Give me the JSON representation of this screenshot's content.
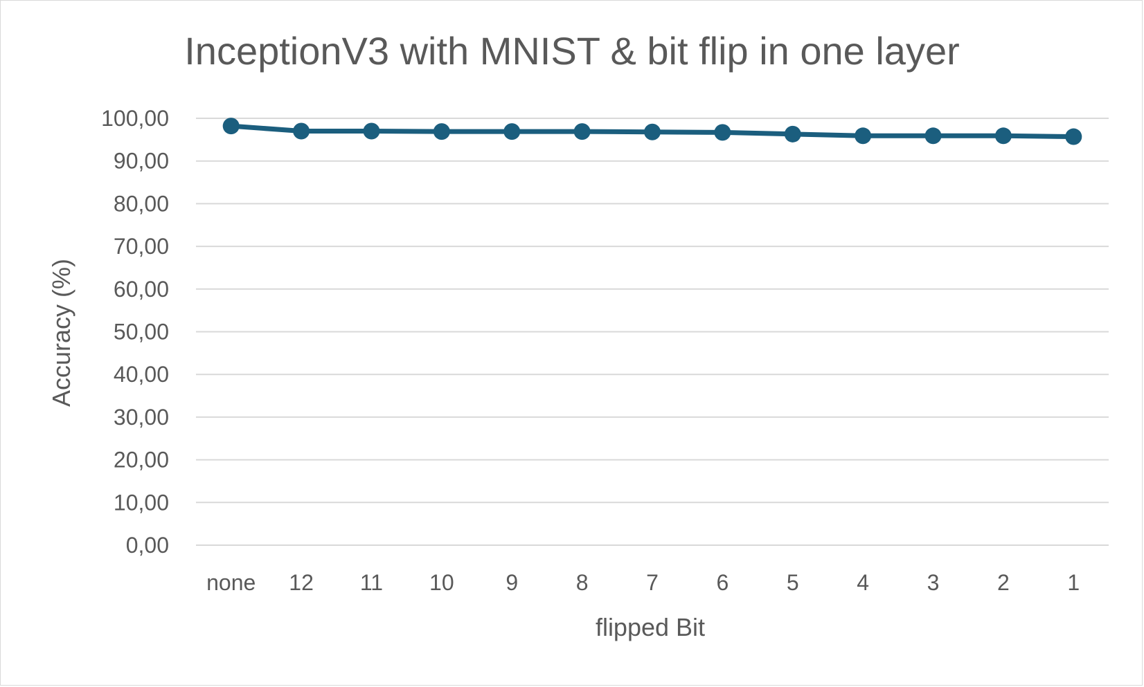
{
  "chart_data": {
    "type": "line",
    "title": "InceptionV3 with MNIST & bit flip in one layer",
    "xlabel": "flipped Bit",
    "ylabel": "Accuracy (%)",
    "categories": [
      "none",
      "12",
      "11",
      "10",
      "9",
      "8",
      "7",
      "6",
      "5",
      "4",
      "3",
      "2",
      "1"
    ],
    "series": [
      {
        "values": [
          98.2,
          97.0,
          97.0,
          96.9,
          96.9,
          96.9,
          96.8,
          96.7,
          96.3,
          95.9,
          95.9,
          95.9,
          95.7
        ]
      }
    ],
    "ylim": [
      0,
      100
    ],
    "yticks": [
      0,
      10,
      20,
      30,
      40,
      50,
      60,
      70,
      80,
      90,
      100
    ],
    "ytick_labels": [
      "0,00",
      "10,00",
      "20,00",
      "30,00",
      "40,00",
      "50,00",
      "60,00",
      "70,00",
      "80,00",
      "90,00",
      "100,00"
    ],
    "grid": true,
    "legend": "none",
    "colors": {
      "series": "#1b5e7e",
      "grid": "#d9d9d9",
      "text": "#595959"
    }
  }
}
